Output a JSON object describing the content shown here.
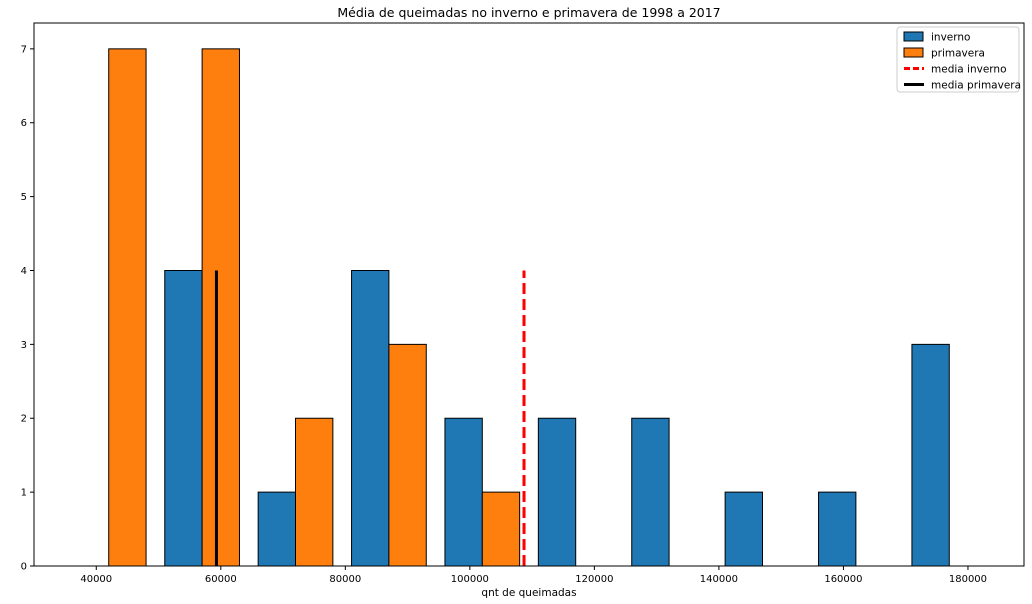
{
  "chart_data": {
    "type": "bar",
    "title": "Média de queimadas no inverno e primavera de 1998 a 2017",
    "xlabel": "qnt de queimadas",
    "ylabel": "",
    "xlim": [
      30000,
      189000
    ],
    "ylim": [
      0,
      7.35
    ],
    "xticks": [
      40000,
      60000,
      80000,
      100000,
      120000,
      140000,
      160000,
      180000
    ],
    "yticks": [
      0,
      1,
      2,
      3,
      4,
      5,
      6,
      7
    ],
    "grid": false,
    "legend_position": "top-right",
    "bar_width": 6000,
    "series": [
      {
        "name": "inverno",
        "color": "#1f77b4",
        "kind": "bar",
        "x": [
          54000,
          69000,
          84000,
          99000,
          114000,
          129000,
          144000,
          159000,
          174000
        ],
        "values": [
          4,
          1,
          4,
          2,
          2,
          2,
          1,
          1,
          3
        ]
      },
      {
        "name": "primavera",
        "color": "#ff7f0e",
        "kind": "bar",
        "x": [
          45000,
          60000,
          75000,
          90000,
          105000
        ],
        "values": [
          7,
          7,
          2,
          3,
          1
        ]
      },
      {
        "name": "media inverno",
        "color": "#ff0000",
        "kind": "vline",
        "style": "dashed",
        "x": 108700,
        "y_range": [
          0,
          4
        ]
      },
      {
        "name": "media primavera",
        "color": "#000000",
        "kind": "vline",
        "style": "solid",
        "x": 59300,
        "y_range": [
          0,
          4
        ]
      }
    ]
  }
}
